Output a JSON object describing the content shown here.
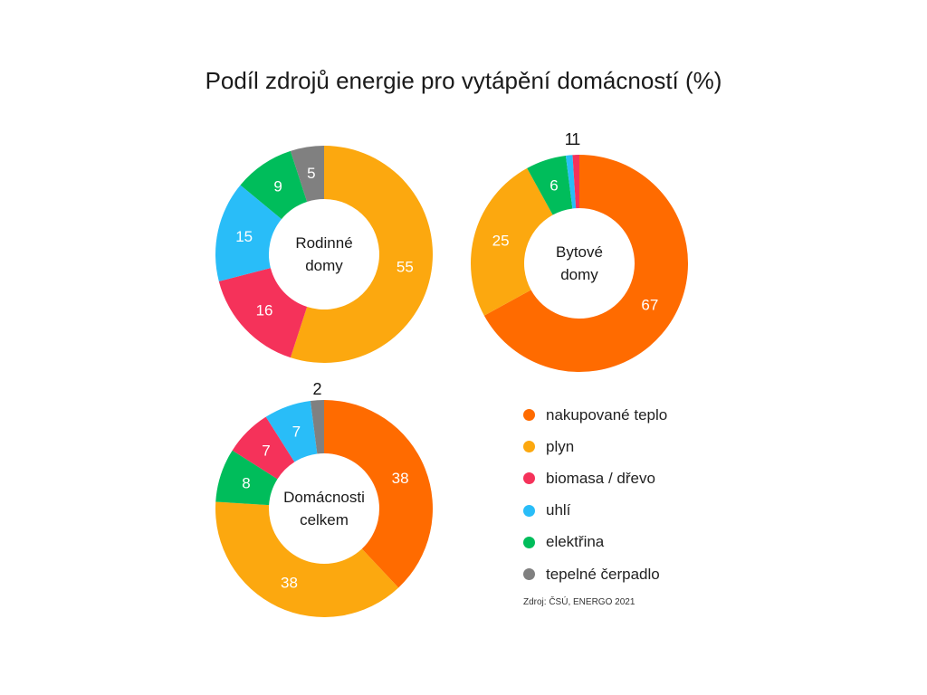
{
  "title": "Podíl zdrojů energie pro vytápění domácností (%)",
  "source": "Zdroj: ČSÚ, ENERGO 2021",
  "legend": [
    {
      "key": "nakupovane_teplo",
      "label": "nakupované teplo",
      "color": "#ff6b00"
    },
    {
      "key": "plyn",
      "label": "plyn",
      "color": "#fca80f"
    },
    {
      "key": "biomasa",
      "label": "biomasa / dřevo",
      "color": "#f5325a"
    },
    {
      "key": "uhli",
      "label": "uhlí",
      "color": "#29bdf8"
    },
    {
      "key": "elektrina",
      "label": "elektřina",
      "color": "#00bd5b"
    },
    {
      "key": "tepelne_cerpadlo",
      "label": "tepelné čerpadlo",
      "color": "#808080"
    }
  ],
  "chart_data": [
    {
      "type": "pie",
      "center_label": [
        "Rodinné",
        "domy"
      ],
      "segments": [
        {
          "series": "plyn",
          "value": 55
        },
        {
          "series": "biomasa",
          "value": 16
        },
        {
          "series": "uhli",
          "value": 15
        },
        {
          "series": "elektrina",
          "value": 9
        },
        {
          "series": "tepelne_cerpadlo",
          "value": 5
        }
      ]
    },
    {
      "type": "pie",
      "center_label": [
        "Bytové",
        "domy"
      ],
      "segments": [
        {
          "series": "nakupovane_teplo",
          "value": 67
        },
        {
          "series": "plyn",
          "value": 25
        },
        {
          "series": "elektrina",
          "value": 6
        },
        {
          "series": "uhli",
          "value": 1
        },
        {
          "series": "biomasa",
          "value": 1
        }
      ]
    },
    {
      "type": "pie",
      "center_label": [
        "Domácnosti",
        "celkem"
      ],
      "segments": [
        {
          "series": "nakupovane_teplo",
          "value": 38
        },
        {
          "series": "plyn",
          "value": 38
        },
        {
          "series": "elektrina",
          "value": 8
        },
        {
          "series": "biomasa",
          "value": 7
        },
        {
          "series": "uhli",
          "value": 7
        },
        {
          "series": "tepelne_cerpadlo",
          "value": 2
        }
      ]
    }
  ]
}
